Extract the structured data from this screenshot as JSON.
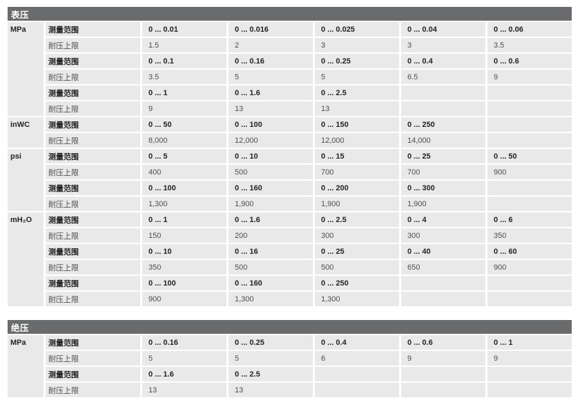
{
  "colors": {
    "header_bar": "#696b6d",
    "header_text": "#ffffff",
    "cell_bg": "#e9e9e9",
    "bold_text": "#232323",
    "normal_text": "#4d4d4d"
  },
  "tables": [
    {
      "title": "表压",
      "sections": [
        {
          "unit": "MPa",
          "rows": [
            {
              "label": "测量范围",
              "bold": true,
              "values": [
                "0 ... 0.01",
                "0 ... 0.016",
                "0 ... 0.025",
                "0 ... 0.04",
                "0 ... 0.06"
              ]
            },
            {
              "label": "耐压上限",
              "bold": false,
              "values": [
                "1.5",
                "2",
                "3",
                "3",
                "3.5"
              ]
            },
            {
              "label": "测量范围",
              "bold": true,
              "values": [
                "0 ... 0.1",
                "0 ... 0.16",
                "0 ... 0.25",
                "0 ... 0.4",
                "0 ... 0.6"
              ]
            },
            {
              "label": "耐压上限",
              "bold": false,
              "values": [
                "3.5",
                "5",
                "5",
                "6.5",
                "9"
              ]
            },
            {
              "label": "测量范围",
              "bold": true,
              "values": [
                "0 ... 1",
                "0 ... 1.6",
                "0 ... 2.5",
                "",
                ""
              ]
            },
            {
              "label": "耐压上限",
              "bold": false,
              "values": [
                "9",
                "13",
                "13",
                "",
                ""
              ]
            }
          ]
        },
        {
          "unit": "inWC",
          "rows": [
            {
              "label": "测量范围",
              "bold": true,
              "values": [
                "0 ... 50",
                "0 ... 100",
                "0 ... 150",
                "0 ... 250",
                ""
              ]
            },
            {
              "label": "耐压上限",
              "bold": false,
              "values": [
                "8,000",
                "12,000",
                "12,000",
                "14,000",
                ""
              ]
            }
          ]
        },
        {
          "unit": "psi",
          "rows": [
            {
              "label": "测量范围",
              "bold": true,
              "values": [
                "0 ... 5",
                "0 ... 10",
                "0 ... 15",
                "0 ... 25",
                "0 ... 50"
              ]
            },
            {
              "label": "耐压上限",
              "bold": false,
              "values": [
                "400",
                "500",
                "700",
                "700",
                "900"
              ]
            },
            {
              "label": "测量范围",
              "bold": true,
              "values": [
                "0 ... 100",
                "0 ... 160",
                "0 ... 200",
                "0 ... 300",
                ""
              ]
            },
            {
              "label": "耐压上限",
              "bold": false,
              "values": [
                "1,300",
                "1,900",
                "1,900",
                "1,900",
                ""
              ]
            }
          ]
        },
        {
          "unit": "mH₂O",
          "rows": [
            {
              "label": "测量范围",
              "bold": true,
              "values": [
                "0 ... 1",
                "0 ... 1.6",
                "0 ... 2.5",
                "0 ... 4",
                "0 ... 6"
              ]
            },
            {
              "label": "耐压上限",
              "bold": false,
              "values": [
                "150",
                "200",
                "300",
                "300",
                "350"
              ]
            },
            {
              "label": "测量范围",
              "bold": true,
              "values": [
                "0 ... 10",
                "0 ... 16",
                "0 ... 25",
                "0 ... 40",
                "0 ... 60"
              ]
            },
            {
              "label": "耐压上限",
              "bold": false,
              "values": [
                "350",
                "500",
                "500",
                "650",
                "900"
              ]
            },
            {
              "label": "测量范围",
              "bold": true,
              "values": [
                "0 ... 100",
                "0 ... 160",
                "0 ... 250",
                "",
                ""
              ]
            },
            {
              "label": "耐压上限",
              "bold": false,
              "values": [
                "900",
                "1,300",
                "1,300",
                "",
                ""
              ]
            }
          ]
        }
      ]
    },
    {
      "title": "绝压",
      "sections": [
        {
          "unit": "MPa",
          "rows": [
            {
              "label": "测量范围",
              "bold": true,
              "values": [
                "0 ... 0.16",
                "0 ... 0.25",
                "0 ... 0.4",
                "0 ... 0.6",
                "0 ... 1"
              ]
            },
            {
              "label": "耐压上限",
              "bold": false,
              "values": [
                "5",
                "5",
                "6",
                "9",
                "9"
              ]
            },
            {
              "label": "测量范围",
              "bold": true,
              "values": [
                "0 ... 1.6",
                "0 ... 2.5",
                "",
                "",
                ""
              ]
            },
            {
              "label": "耐压上限",
              "bold": false,
              "values": [
                "13",
                "13",
                "",
                "",
                ""
              ]
            }
          ]
        }
      ]
    }
  ]
}
